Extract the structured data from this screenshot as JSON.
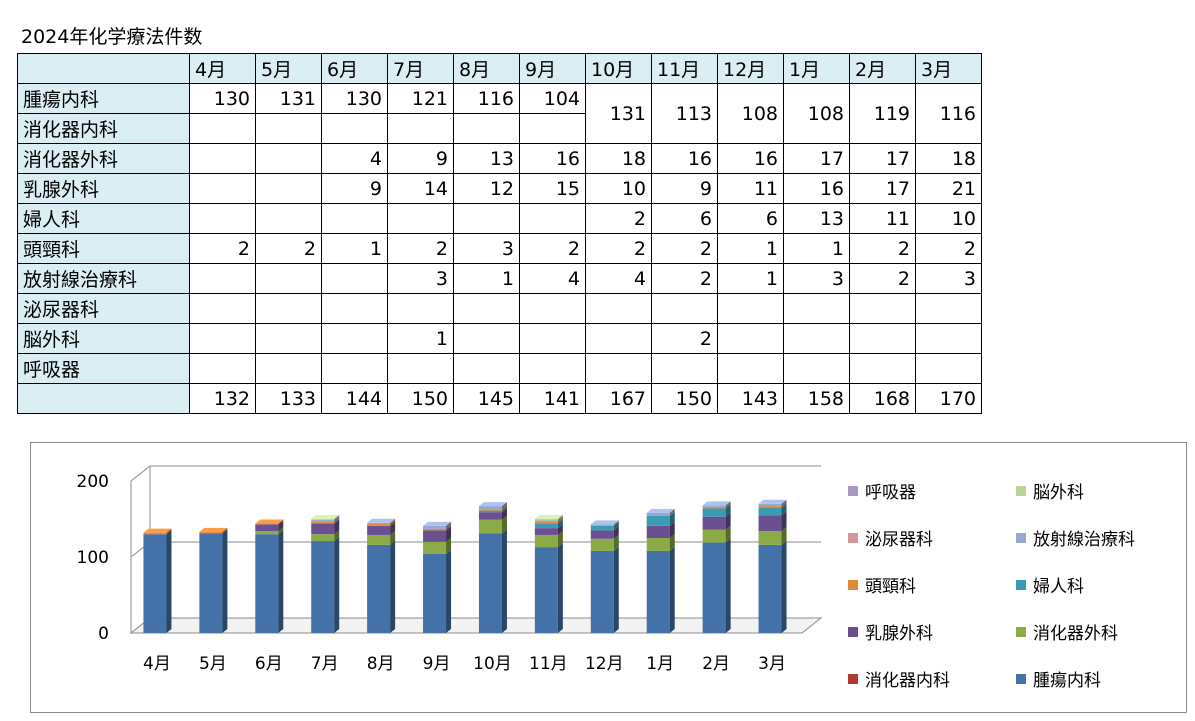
{
  "title": "2024年化学療法件数",
  "months": [
    "4月",
    "5月",
    "6月",
    "7月",
    "8月",
    "9月",
    "10月",
    "11月",
    "12月",
    "1月",
    "2月",
    "3月"
  ],
  "rows": [
    {
      "dept": "腫瘍内科",
      "cells": [
        "130",
        "131",
        "130",
        "121",
        "116",
        "104",
        "131",
        "113",
        "108",
        "108",
        "119",
        "116"
      ]
    },
    {
      "dept": "消化器内科",
      "cells": [
        "",
        "",
        "",
        "",
        "",
        "",
        "",
        "",
        "",
        "",
        "",
        ""
      ]
    },
    {
      "dept": "消化器外科",
      "cells": [
        "",
        "",
        "4",
        "9",
        "13",
        "16",
        "18",
        "16",
        "16",
        "17",
        "17",
        "18"
      ]
    },
    {
      "dept": "乳腺外科",
      "cells": [
        "",
        "",
        "9",
        "14",
        "12",
        "15",
        "10",
        "9",
        "11",
        "16",
        "17",
        "21"
      ]
    },
    {
      "dept": "婦人科",
      "cells": [
        "",
        "",
        "",
        "",
        "",
        "",
        "2",
        "6",
        "6",
        "13",
        "11",
        "10"
      ]
    },
    {
      "dept": "頭頸科",
      "cells": [
        "2",
        "2",
        "1",
        "2",
        "3",
        "2",
        "2",
        "2",
        "1",
        "1",
        "2",
        "2"
      ]
    },
    {
      "dept": "放射線治療科",
      "cells": [
        "",
        "",
        "",
        "3",
        "1",
        "4",
        "4",
        "2",
        "1",
        "3",
        "2",
        "3"
      ]
    },
    {
      "dept": "泌尿器科",
      "cells": [
        "",
        "",
        "",
        "",
        "",
        "",
        "",
        "",
        "",
        "",
        "",
        ""
      ]
    },
    {
      "dept": "脳外科",
      "cells": [
        "",
        "",
        "",
        "1",
        "",
        "",
        "",
        "2",
        "",
        "",
        "",
        ""
      ]
    },
    {
      "dept": "呼吸器",
      "cells": [
        "",
        "",
        "",
        "",
        "",
        "",
        "",
        "",
        "",
        "",
        "",
        ""
      ]
    }
  ],
  "totals": [
    "132",
    "133",
    "144",
    "150",
    "145",
    "141",
    "167",
    "150",
    "143",
    "158",
    "168",
    "170"
  ],
  "chart_data": {
    "type": "bar",
    "stacked": true,
    "categories": [
      "4月",
      "5月",
      "6月",
      "7月",
      "8月",
      "9月",
      "10月",
      "11月",
      "12月",
      "1月",
      "2月",
      "3月"
    ],
    "ylim": [
      0,
      200
    ],
    "yticks": [
      "0",
      "100",
      "200"
    ],
    "legend_position": "right",
    "series": [
      {
        "name": "腫瘍内科",
        "color": "#4472a8",
        "values": [
          130,
          131,
          130,
          121,
          116,
          104,
          131,
          113,
          108,
          108,
          119,
          116
        ]
      },
      {
        "name": "消化器内科",
        "color": "#b03a32",
        "values": [
          0,
          0,
          0,
          0,
          0,
          0,
          0,
          0,
          0,
          0,
          0,
          0
        ]
      },
      {
        "name": "消化器外科",
        "color": "#8aab45",
        "values": [
          0,
          0,
          4,
          9,
          13,
          16,
          18,
          16,
          16,
          17,
          17,
          18
        ]
      },
      {
        "name": "乳腺外科",
        "color": "#6b5091",
        "values": [
          0,
          0,
          9,
          14,
          12,
          15,
          10,
          9,
          11,
          16,
          17,
          21
        ]
      },
      {
        "name": "婦人科",
        "color": "#3a9bb3",
        "values": [
          0,
          0,
          0,
          0,
          0,
          0,
          2,
          6,
          6,
          13,
          11,
          10
        ]
      },
      {
        "name": "頭頸科",
        "color": "#e3873a",
        "values": [
          2,
          2,
          1,
          2,
          3,
          2,
          2,
          2,
          1,
          1,
          2,
          2
        ]
      },
      {
        "name": "放射線治療科",
        "color": "#97a9cf",
        "values": [
          0,
          0,
          0,
          3,
          1,
          4,
          4,
          2,
          1,
          3,
          2,
          3
        ]
      },
      {
        "name": "泌尿器科",
        "color": "#d29996",
        "values": [
          0,
          0,
          0,
          0,
          0,
          0,
          0,
          0,
          0,
          0,
          0,
          0
        ]
      },
      {
        "name": "脳外科",
        "color": "#bcd49b",
        "values": [
          0,
          0,
          0,
          1,
          0,
          0,
          0,
          2,
          0,
          0,
          0,
          0
        ]
      },
      {
        "name": "呼吸器",
        "color": "#a899c2",
        "values": [
          0,
          0,
          0,
          0,
          0,
          0,
          0,
          0,
          0,
          0,
          0,
          0
        ]
      }
    ]
  }
}
